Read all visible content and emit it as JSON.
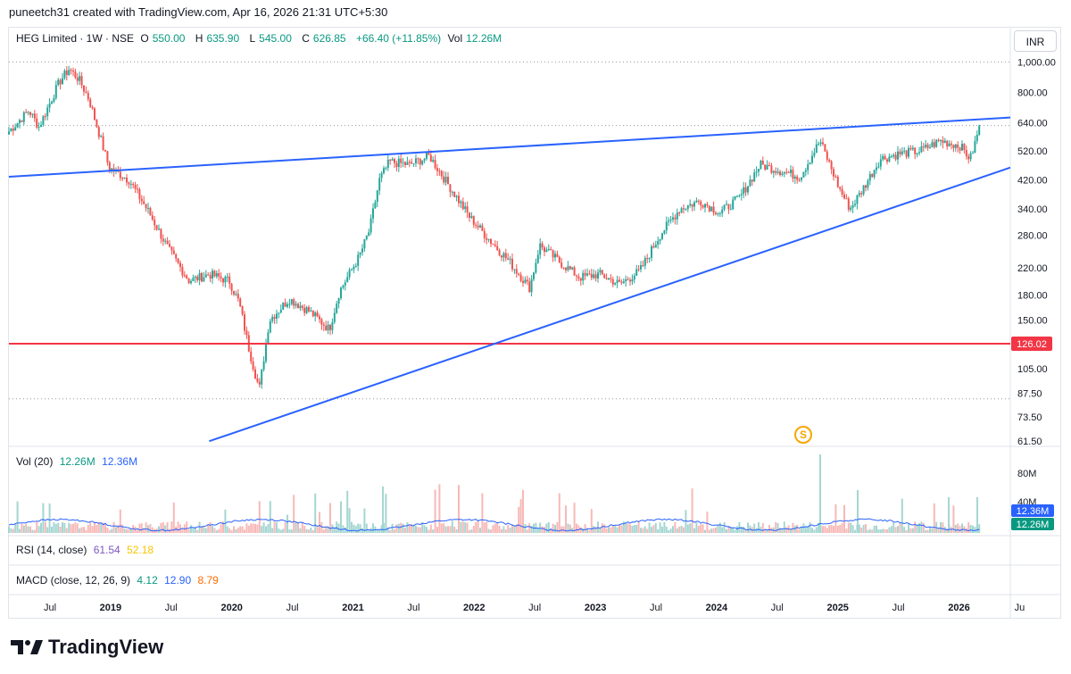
{
  "caption": "puneetch31 created with TradingView.com, Apr 16, 2026 21:31 UTC+5:30",
  "legend": {
    "symbol": "HEG Limited · 1W · NSE",
    "o_label": "O",
    "o_value": "550.00",
    "h_label": "H",
    "h_value": "635.90",
    "l_label": "L",
    "l_value": "545.00",
    "c_label": "C",
    "c_value": "626.85",
    "change": "+66.40 (+11.85%)",
    "vol_label": "Vol",
    "vol_value": "12.26M"
  },
  "currency": "INR",
  "vol_legend": {
    "label": "Vol (20)",
    "v1": "12.26M",
    "v2": "12.36M"
  },
  "rsi_legend": {
    "label": "RSI (14, close)",
    "v1": "61.54",
    "v2": "52.18"
  },
  "macd_legend": {
    "label": "MACD (close, 12, 26, 9)",
    "v1": "4.12",
    "v2": "12.90",
    "v3": "8.79"
  },
  "brand": "TradingView",
  "earnings_marker": "S",
  "colors": {
    "up": "#26a69a",
    "down": "#ef5350",
    "trend": "#2962ff",
    "support": "#f23645",
    "ma": "#2962ff"
  },
  "chart_data": {
    "type": "candlestick",
    "title": "HEG Limited · 1W · NSE",
    "y_scale": "log",
    "ylim": [
      60,
      1050
    ],
    "y_ticks": [
      "1,000.00",
      "800.00",
      "640.00",
      "520.00",
      "420.00",
      "340.00",
      "280.00",
      "220.00",
      "180.00",
      "150.00",
      "105.00",
      "87.50",
      "73.50",
      "61.50"
    ],
    "y_tick_values": [
      1000,
      800,
      640,
      520,
      420,
      340,
      280,
      220,
      180,
      150,
      105,
      87.5,
      73.5,
      61.5
    ],
    "x_ticks": [
      "Jul",
      "2019",
      "Jul",
      "2020",
      "Jul",
      "2021",
      "Jul",
      "2022",
      "Jul",
      "2023",
      "Jul",
      "2024",
      "Jul",
      "2025",
      "Jul",
      "2026",
      "Ju"
    ],
    "x_range": [
      "2018-03",
      "2026-07"
    ],
    "price_path": [
      [
        "2018-03",
        600
      ],
      [
        "2018-05",
        700
      ],
      [
        "2018-06",
        620
      ],
      [
        "2018-08",
        860
      ],
      [
        "2018-09",
        950
      ],
      [
        "2018-10",
        880
      ],
      [
        "2018-11",
        760
      ],
      [
        "2019-01",
        460
      ],
      [
        "2019-03",
        420
      ],
      [
        "2019-05",
        330
      ],
      [
        "2019-07",
        250
      ],
      [
        "2019-09",
        200
      ],
      [
        "2019-11",
        210
      ],
      [
        "2020-01",
        200
      ],
      [
        "2020-02",
        170
      ],
      [
        "2020-03",
        120
      ],
      [
        "2020-04",
        90
      ],
      [
        "2020-05",
        150
      ],
      [
        "2020-07",
        175
      ],
      [
        "2020-09",
        160
      ],
      [
        "2020-11",
        140
      ],
      [
        "2020-12",
        185
      ],
      [
        "2021-02",
        240
      ],
      [
        "2021-03",
        290
      ],
      [
        "2021-04",
        420
      ],
      [
        "2021-05",
        480
      ],
      [
        "2021-07",
        470
      ],
      [
        "2021-09",
        500
      ],
      [
        "2021-11",
        400
      ],
      [
        "2022-01",
        320
      ],
      [
        "2022-03",
        270
      ],
      [
        "2022-05",
        230
      ],
      [
        "2022-07",
        190
      ],
      [
        "2022-08",
        260
      ],
      [
        "2022-10",
        230
      ],
      [
        "2022-12",
        205
      ],
      [
        "2023-02",
        210
      ],
      [
        "2023-04",
        195
      ],
      [
        "2023-06",
        215
      ],
      [
        "2023-08",
        280
      ],
      [
        "2023-10",
        340
      ],
      [
        "2023-12",
        360
      ],
      [
        "2024-02",
        330
      ],
      [
        "2024-04",
        370
      ],
      [
        "2024-06",
        470
      ],
      [
        "2024-08",
        450
      ],
      [
        "2024-10",
        430
      ],
      [
        "2024-12",
        560
      ],
      [
        "2025-02",
        390
      ],
      [
        "2025-03",
        340
      ],
      [
        "2025-04",
        380
      ],
      [
        "2025-06",
        490
      ],
      [
        "2025-08",
        510
      ],
      [
        "2025-10",
        520
      ],
      [
        "2025-12",
        560
      ],
      [
        "2026-02",
        540
      ],
      [
        "2026-03",
        490
      ],
      [
        "2026-04",
        626.85
      ]
    ],
    "support_level": "126.02",
    "trendlines": [
      {
        "name": "upper",
        "from": [
          "2018-03",
          430
        ],
        "to": [
          "2026-07",
          665
        ]
      },
      {
        "name": "lower",
        "from": [
          "2019-11",
          61.5
        ],
        "to": [
          "2026-07",
          460
        ]
      }
    ],
    "volume_axis": [
      "80M",
      "40M"
    ],
    "volume_last": "12.26M",
    "volume_ma_last": "12.36M"
  }
}
